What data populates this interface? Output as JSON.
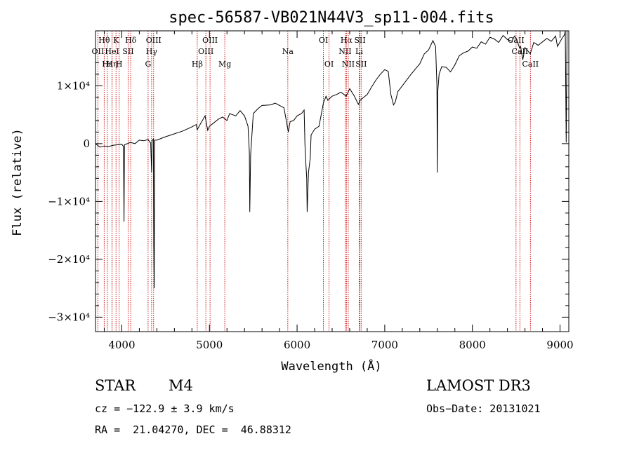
{
  "chart_data": {
    "type": "line",
    "title": "spec-56587-VB021N44V3_sp11-004.fits",
    "xlabel": "Wavelength (Å)",
    "ylabel": "Flux (relative)",
    "xlim": [
      3700,
      9100
    ],
    "ylim": [
      -32500,
      19500
    ],
    "x_ticks": [
      {
        "value": 4000,
        "label": "4000"
      },
      {
        "value": 5000,
        "label": "5000"
      },
      {
        "value": 6000,
        "label": "6000"
      },
      {
        "value": 7000,
        "label": "7000"
      },
      {
        "value": 8000,
        "label": "8000"
      },
      {
        "value": 9000,
        "label": "9000"
      }
    ],
    "y_ticks": [
      {
        "value": 10000,
        "label": "1×10⁴"
      },
      {
        "value": 0,
        "label": "0"
      },
      {
        "value": -10000,
        "label": "−1×10⁴"
      },
      {
        "value": -20000,
        "label": "−2×10⁴"
      },
      {
        "value": -30000,
        "label": "−3×10⁴"
      }
    ],
    "series": [
      {
        "name": "flux",
        "points": [
          [
            3700,
            0
          ],
          [
            3750,
            -600
          ],
          [
            3800,
            -400
          ],
          [
            3850,
            -500
          ],
          [
            3900,
            -300
          ],
          [
            3950,
            -200
          ],
          [
            4000,
            -100
          ],
          [
            4020,
            -500
          ],
          [
            4025,
            -13500
          ],
          [
            4030,
            -200
          ],
          [
            4100,
            200
          ],
          [
            4150,
            0
          ],
          [
            4200,
            600
          ],
          [
            4250,
            500
          ],
          [
            4300,
            700
          ],
          [
            4330,
            100
          ],
          [
            4340,
            -5000
          ],
          [
            4345,
            500
          ],
          [
            4360,
            800
          ],
          [
            4365,
            -17500
          ],
          [
            4370,
            -25000
          ],
          [
            4375,
            600
          ],
          [
            4400,
            600
          ],
          [
            4450,
            900
          ],
          [
            4500,
            1200
          ],
          [
            4600,
            1700
          ],
          [
            4700,
            2200
          ],
          [
            4800,
            2900
          ],
          [
            4850,
            3300
          ],
          [
            4860,
            2400
          ],
          [
            4900,
            3500
          ],
          [
            4950,
            4800
          ],
          [
            4980,
            2300
          ],
          [
            5000,
            3000
          ],
          [
            5050,
            3600
          ],
          [
            5100,
            4200
          ],
          [
            5150,
            4600
          ],
          [
            5200,
            4000
          ],
          [
            5230,
            5200
          ],
          [
            5300,
            4800
          ],
          [
            5350,
            5700
          ],
          [
            5400,
            4800
          ],
          [
            5440,
            3000
          ],
          [
            5455,
            -1500
          ],
          [
            5460,
            -11800
          ],
          [
            5470,
            -2000
          ],
          [
            5500,
            5200
          ],
          [
            5550,
            6000
          ],
          [
            5600,
            6600
          ],
          [
            5700,
            6700
          ],
          [
            5750,
            7000
          ],
          [
            5800,
            6600
          ],
          [
            5850,
            6200
          ],
          [
            5900,
            2000
          ],
          [
            5920,
            3800
          ],
          [
            5960,
            4000
          ],
          [
            6000,
            4800
          ],
          [
            6050,
            5200
          ],
          [
            6080,
            5800
          ],
          [
            6090,
            -300
          ],
          [
            6100,
            -3500
          ],
          [
            6110,
            -6000
          ],
          [
            6115,
            -11800
          ],
          [
            6130,
            -5000
          ],
          [
            6150,
            -2500
          ],
          [
            6160,
            1500
          ],
          [
            6200,
            2500
          ],
          [
            6250,
            3000
          ],
          [
            6300,
            7000
          ],
          [
            6330,
            8200
          ],
          [
            6350,
            7500
          ],
          [
            6400,
            8200
          ],
          [
            6450,
            8500
          ],
          [
            6500,
            8900
          ],
          [
            6560,
            8200
          ],
          [
            6600,
            9500
          ],
          [
            6650,
            8300
          ],
          [
            6700,
            6800
          ],
          [
            6720,
            7500
          ],
          [
            6760,
            8000
          ],
          [
            6800,
            8500
          ],
          [
            6850,
            9800
          ],
          [
            6900,
            11000
          ],
          [
            6950,
            12000
          ],
          [
            7000,
            12800
          ],
          [
            7040,
            12500
          ],
          [
            7070,
            8500
          ],
          [
            7100,
            6700
          ],
          [
            7120,
            7200
          ],
          [
            7150,
            9000
          ],
          [
            7200,
            10000
          ],
          [
            7300,
            12000
          ],
          [
            7400,
            13800
          ],
          [
            7450,
            15500
          ],
          [
            7500,
            16200
          ],
          [
            7550,
            17800
          ],
          [
            7580,
            16800
          ],
          [
            7595,
            10000
          ],
          [
            7600,
            -5000
          ],
          [
            7605,
            9000
          ],
          [
            7620,
            12000
          ],
          [
            7650,
            13300
          ],
          [
            7700,
            13200
          ],
          [
            7750,
            12400
          ],
          [
            7800,
            13600
          ],
          [
            7850,
            15200
          ],
          [
            7900,
            15700
          ],
          [
            7950,
            16000
          ],
          [
            8000,
            16700
          ],
          [
            8050,
            16500
          ],
          [
            8100,
            17600
          ],
          [
            8150,
            17200
          ],
          [
            8200,
            18400
          ],
          [
            8250,
            18100
          ],
          [
            8300,
            17500
          ],
          [
            8350,
            18700
          ],
          [
            8400,
            18000
          ],
          [
            8450,
            17700
          ],
          [
            8480,
            18600
          ],
          [
            8500,
            18200
          ],
          [
            8540,
            16500
          ],
          [
            8550,
            16800
          ],
          [
            8575,
            14500
          ],
          [
            8600,
            16600
          ],
          [
            8640,
            15900
          ],
          [
            8660,
            15500
          ],
          [
            8700,
            17500
          ],
          [
            8750,
            17000
          ],
          [
            8800,
            17600
          ],
          [
            8850,
            18200
          ],
          [
            8900,
            17700
          ],
          [
            8950,
            18600
          ],
          [
            8970,
            16800
          ],
          [
            9000,
            17600
          ],
          [
            9030,
            18400
          ],
          [
            9050,
            18800
          ],
          [
            9060,
            21000
          ],
          [
            9070,
            200
          ],
          [
            9080,
            21000
          ]
        ]
      }
    ],
    "line_markers": [
      {
        "wavelength": 3799,
        "label": "Hθ",
        "row": 1
      },
      {
        "wavelength": 3727,
        "label": "OII",
        "row": 2
      },
      {
        "wavelength": 3835,
        "label": "Hε",
        "row": 3
      },
      {
        "wavelength": 3889,
        "label": "Hη",
        "row": 3
      },
      {
        "wavelength": 3934,
        "label": "K",
        "row": 1
      },
      {
        "wavelength": 3889,
        "label": "HeI",
        "row": 2
      },
      {
        "wavelength": 3970,
        "label": "H",
        "row": 3
      },
      {
        "wavelength": 4072,
        "label": "SII",
        "row": 2
      },
      {
        "wavelength": 4102,
        "label": "Hδ",
        "row": 1
      },
      {
        "wavelength": 4300,
        "label": "G",
        "row": 3
      },
      {
        "wavelength": 4340,
        "label": "Hγ",
        "row": 2
      },
      {
        "wavelength": 4363,
        "label": "OIII",
        "row": 1
      },
      {
        "wavelength": 4861,
        "label": "Hβ",
        "row": 3
      },
      {
        "wavelength": 4959,
        "label": "OIII",
        "row": 2
      },
      {
        "wavelength": 5007,
        "label": "OIII",
        "row": 1
      },
      {
        "wavelength": 5175,
        "label": "Mg",
        "row": 3
      },
      {
        "wavelength": 5894,
        "label": "Na",
        "row": 2
      },
      {
        "wavelength": 6300,
        "label": "OI",
        "row": 1
      },
      {
        "wavelength": 6364,
        "label": "OI",
        "row": 3
      },
      {
        "wavelength": 6548,
        "label": "NII",
        "row": 2
      },
      {
        "wavelength": 6563,
        "label": "Hα",
        "row": 1
      },
      {
        "wavelength": 6584,
        "label": "NII",
        "row": 3
      },
      {
        "wavelength": 6708,
        "label": "Li",
        "row": 2
      },
      {
        "wavelength": 6717,
        "label": "SII",
        "row": 1
      },
      {
        "wavelength": 6731,
        "label": "SII",
        "row": 3
      },
      {
        "wavelength": 8498,
        "label": "CaII",
        "row": 1
      },
      {
        "wavelength": 8542,
        "label": "CaII",
        "row": 2
      },
      {
        "wavelength": 8662,
        "label": "CaII",
        "row": 3
      }
    ]
  },
  "info": {
    "class_label": "STAR",
    "subclass": "M4",
    "survey": "LAMOST DR3",
    "redshift_text": "cz = −122.9 ± 3.9 km/s",
    "obs_date_text": "Obs−Date: 20131021",
    "coords_text": "RA =  21.04270, DEC =  46.88312"
  },
  "colors": {
    "line_marker": "#cc0000",
    "spectrum": "#000000",
    "axis": "#000000"
  }
}
